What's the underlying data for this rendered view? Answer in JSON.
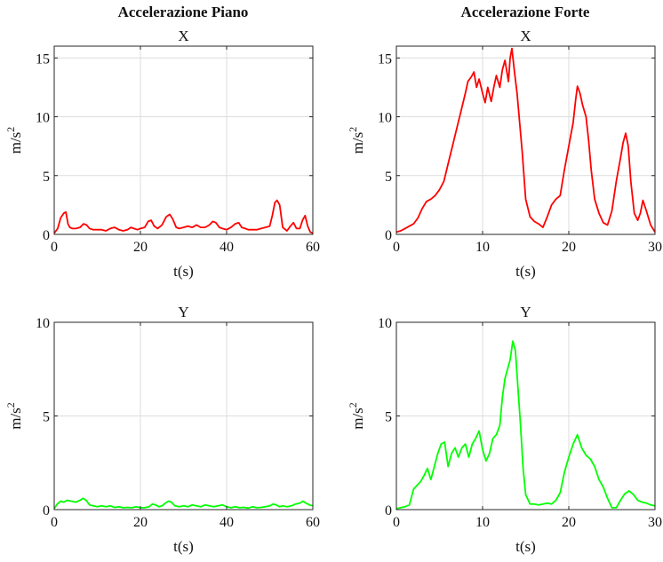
{
  "column_titles": [
    "Accelerazione Piano",
    "Accelerazione Forte"
  ],
  "chart_data": [
    {
      "type": "line",
      "column_title": "Accelerazione Piano",
      "title": "X",
      "xlabel": "t(s)",
      "ylabel": "m/s",
      "ylabel_sup": "2",
      "xlim": [
        0,
        60
      ],
      "ylim": [
        0,
        16
      ],
      "xticks": [
        0,
        20,
        40,
        60
      ],
      "yticks": [
        0,
        5,
        10,
        15
      ],
      "grid": true,
      "color": "#ff0000",
      "series": [
        {
          "x": [
            0,
            0.8,
            1.5,
            2.2,
            2.7,
            3.2,
            3.6,
            4.2,
            5,
            6,
            6.8,
            7.5,
            8.2,
            9,
            10,
            11,
            12,
            13,
            14,
            15,
            16,
            17,
            17.8,
            18.5,
            19.3,
            20,
            21,
            21.8,
            22.5,
            23.2,
            24,
            25,
            26,
            26.8,
            27.5,
            28.3,
            29,
            30,
            31,
            32,
            33,
            34,
            35,
            36,
            36.8,
            37.5,
            38.3,
            39,
            40,
            41,
            42,
            42.8,
            43.5,
            44.3,
            45,
            46,
            47,
            48,
            49,
            50,
            50.6,
            51.2,
            51.7,
            52.3,
            53,
            54,
            54.8,
            55.5,
            56.2,
            57,
            57.6,
            58.2,
            58.8,
            59.4,
            60
          ],
          "y": [
            0.1,
            0.5,
            1.4,
            1.8,
            1.9,
            0.9,
            0.6,
            0.5,
            0.5,
            0.6,
            0.9,
            0.8,
            0.5,
            0.4,
            0.4,
            0.4,
            0.3,
            0.5,
            0.6,
            0.4,
            0.3,
            0.4,
            0.6,
            0.5,
            0.4,
            0.5,
            0.6,
            1.1,
            1.2,
            0.7,
            0.5,
            0.8,
            1.5,
            1.7,
            1.3,
            0.6,
            0.5,
            0.6,
            0.7,
            0.6,
            0.8,
            0.6,
            0.6,
            0.8,
            1.1,
            1.0,
            0.6,
            0.5,
            0.4,
            0.6,
            0.9,
            1.0,
            0.6,
            0.5,
            0.4,
            0.4,
            0.4,
            0.5,
            0.6,
            0.7,
            1.6,
            2.7,
            2.9,
            2.5,
            0.6,
            0.3,
            0.7,
            1.0,
            0.5,
            0.5,
            1.2,
            1.6,
            0.7,
            0.2,
            0.1
          ]
        }
      ]
    },
    {
      "type": "line",
      "column_title": "Accelerazione Forte",
      "title": "X",
      "xlabel": "t(s)",
      "ylabel": "m/s",
      "ylabel_sup": "2",
      "xlim": [
        0,
        30
      ],
      "ylim": [
        0,
        16
      ],
      "xticks": [
        0,
        10,
        20,
        30
      ],
      "yticks": [
        0,
        5,
        10,
        15
      ],
      "grid": true,
      "color": "#ff0000",
      "series": [
        {
          "x": [
            0,
            0.5,
            1,
            1.5,
            2,
            2.5,
            3,
            3.5,
            4,
            4.5,
            5,
            5.5,
            6,
            6.5,
            7,
            7.5,
            8,
            8.3,
            8.7,
            9,
            9.3,
            9.6,
            10,
            10.3,
            10.6,
            11,
            11.3,
            11.6,
            12,
            12.3,
            12.6,
            13,
            13.2,
            13.4,
            13.7,
            14,
            14.3,
            14.6,
            15,
            15.5,
            16,
            16.5,
            17,
            17.5,
            18,
            18.5,
            19,
            19.5,
            20,
            20.5,
            20.8,
            21,
            21.3,
            21.6,
            22,
            22.3,
            22.6,
            23,
            23.5,
            24,
            24.5,
            25,
            25.5,
            26,
            26.3,
            26.6,
            26.9,
            27.2,
            27.6,
            28,
            28.3,
            28.6,
            29,
            29.5,
            30
          ],
          "y": [
            0.2,
            0.3,
            0.5,
            0.7,
            0.9,
            1.4,
            2.2,
            2.8,
            3.0,
            3.3,
            3.8,
            4.5,
            6.0,
            7.5,
            9.0,
            10.5,
            12.0,
            13.0,
            13.4,
            13.8,
            12.5,
            13.2,
            12.0,
            11.2,
            12.5,
            11.3,
            12.5,
            13.5,
            12.5,
            14.0,
            14.8,
            13.0,
            15.0,
            15.8,
            13.8,
            12.0,
            9.5,
            7.0,
            3.0,
            1.5,
            1.1,
            0.9,
            0.6,
            1.5,
            2.5,
            3.0,
            3.3,
            5.5,
            7.5,
            9.5,
            11.5,
            12.6,
            12.0,
            11.0,
            10.0,
            8.0,
            5.5,
            3.0,
            1.8,
            1.0,
            0.8,
            2.0,
            4.5,
            6.5,
            7.8,
            8.6,
            7.5,
            4.5,
            1.8,
            1.2,
            1.8,
            2.9,
            2.0,
            0.8,
            0.2
          ]
        }
      ]
    },
    {
      "type": "line",
      "column_title": "Accelerazione Piano",
      "title": "Y",
      "xlabel": "t(s)",
      "ylabel": "m/s",
      "ylabel_sup": "2",
      "xlim": [
        0,
        60
      ],
      "ylim": [
        0,
        10
      ],
      "xticks": [
        0,
        20,
        40,
        60
      ],
      "yticks": [
        0,
        5,
        10
      ],
      "grid": true,
      "color": "#00ff00",
      "series": [
        {
          "x": [
            0,
            0.7,
            1.5,
            2.2,
            3,
            4,
            5,
            6,
            6.7,
            7.4,
            8.2,
            9,
            10,
            11,
            12,
            13,
            14,
            15,
            16,
            17,
            18,
            19,
            20,
            21,
            22,
            22.8,
            23.5,
            24.3,
            25,
            25.8,
            26.5,
            27.2,
            28,
            29,
            30,
            31,
            32,
            33,
            34,
            35,
            36,
            37,
            38,
            39,
            40,
            41,
            42,
            43,
            44,
            45,
            46,
            47,
            48,
            49,
            50,
            50.8,
            51.5,
            52.3,
            53,
            54,
            55,
            56,
            57,
            57.7,
            58.4,
            59.2,
            60
          ],
          "y": [
            0.05,
            0.3,
            0.45,
            0.4,
            0.5,
            0.45,
            0.4,
            0.5,
            0.6,
            0.5,
            0.25,
            0.2,
            0.15,
            0.2,
            0.15,
            0.2,
            0.12,
            0.15,
            0.1,
            0.12,
            0.1,
            0.15,
            0.1,
            0.1,
            0.15,
            0.3,
            0.25,
            0.15,
            0.2,
            0.35,
            0.45,
            0.4,
            0.2,
            0.15,
            0.2,
            0.15,
            0.25,
            0.2,
            0.15,
            0.25,
            0.2,
            0.15,
            0.2,
            0.25,
            0.15,
            0.1,
            0.15,
            0.1,
            0.12,
            0.08,
            0.15,
            0.1,
            0.12,
            0.15,
            0.2,
            0.3,
            0.25,
            0.15,
            0.2,
            0.15,
            0.2,
            0.3,
            0.35,
            0.45,
            0.35,
            0.25,
            0.2
          ]
        }
      ]
    },
    {
      "type": "line",
      "column_title": "Accelerazione Forte",
      "title": "Y",
      "xlabel": "t(s)",
      "ylabel": "m/s",
      "ylabel_sup": "2",
      "xlim": [
        0,
        30
      ],
      "ylim": [
        0,
        10
      ],
      "xticks": [
        0,
        10,
        20,
        30
      ],
      "yticks": [
        0,
        5,
        10
      ],
      "grid": true,
      "color": "#00ff00",
      "series": [
        {
          "x": [
            0,
            0.5,
            1,
            1.5,
            2,
            2.4,
            2.8,
            3.2,
            3.6,
            4,
            4.4,
            4.8,
            5.2,
            5.6,
            6,
            6.4,
            6.8,
            7.2,
            7.6,
            8,
            8.4,
            8.8,
            9.2,
            9.6,
            10,
            10.4,
            10.8,
            11.2,
            11.6,
            12,
            12.3,
            12.6,
            12.9,
            13.2,
            13.5,
            13.8,
            14.1,
            14.4,
            14.7,
            15,
            15.5,
            16,
            16.5,
            17,
            17.5,
            18,
            18.5,
            19,
            19.5,
            20,
            20.5,
            21,
            21.5,
            22,
            22.5,
            23,
            23.5,
            24,
            24.5,
            25,
            25.5,
            26,
            26.5,
            27,
            27.5,
            28,
            28.5,
            29,
            29.5,
            30
          ],
          "y": [
            0.05,
            0.1,
            0.15,
            0.25,
            1.1,
            1.3,
            1.5,
            1.8,
            2.2,
            1.6,
            2.3,
            3.0,
            3.5,
            3.6,
            2.3,
            3.0,
            3.3,
            2.8,
            3.3,
            3.5,
            2.8,
            3.5,
            3.8,
            4.2,
            3.2,
            2.6,
            3.0,
            3.8,
            4.0,
            4.5,
            6.0,
            7.0,
            7.5,
            8.0,
            9.0,
            8.5,
            6.5,
            4.5,
            2.2,
            0.8,
            0.3,
            0.3,
            0.25,
            0.3,
            0.35,
            0.3,
            0.5,
            0.9,
            2.0,
            2.8,
            3.5,
            4.0,
            3.3,
            2.9,
            2.7,
            2.3,
            1.6,
            1.2,
            0.6,
            0.1,
            0.1,
            0.5,
            0.85,
            1.0,
            0.8,
            0.5,
            0.4,
            0.35,
            0.25,
            0.2
          ]
        }
      ]
    }
  ]
}
